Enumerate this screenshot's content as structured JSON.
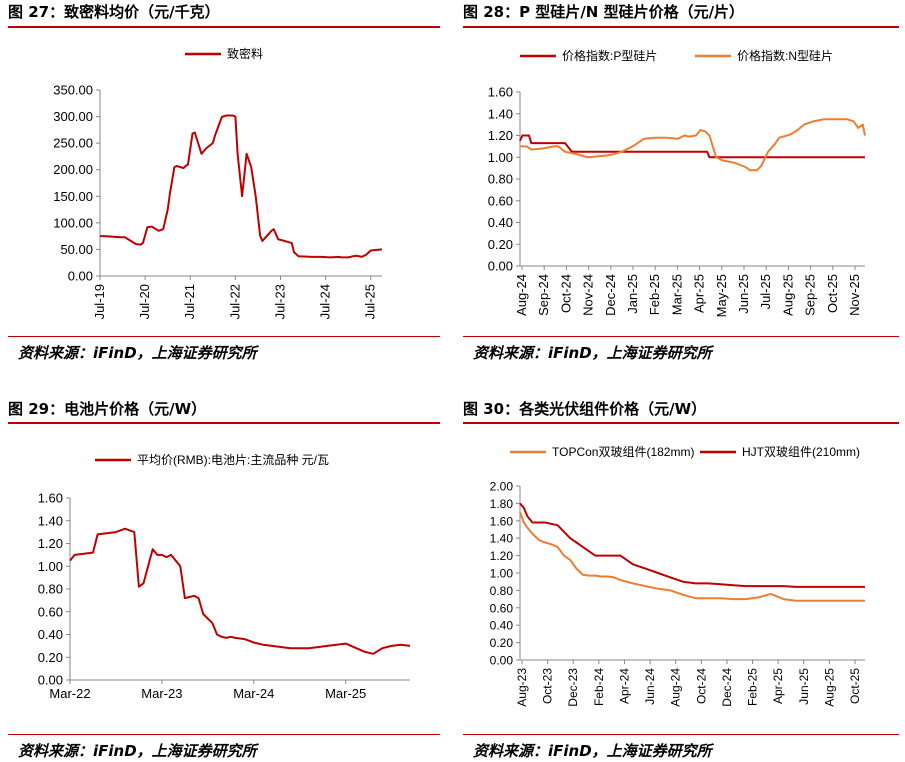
{
  "colors": {
    "dark_red": "#C00000",
    "orange": "#ED7D31",
    "rule": "#C00000"
  },
  "charts": [
    {
      "title": "图 27：致密料均价（元/千克）",
      "source": "资料来源：iFinD，上海证券研究所",
      "chart_data": {
        "type": "line",
        "title": "",
        "legend": [
          "致密料"
        ],
        "ylim": [
          0,
          350
        ],
        "yticks": [
          "0.00",
          "50.00",
          "100.00",
          "150.00",
          "200.00",
          "250.00",
          "300.00",
          "350.00"
        ],
        "xticks": [
          "Jul-19",
          "Jul-20",
          "Jul-21",
          "Jul-22",
          "Jul-23",
          "Jul-24",
          "Jul-25"
        ],
        "xrange": [
          2019.5,
          2025.75
        ],
        "series": [
          {
            "name": "致密料",
            "color": "#C00000",
            "x": [
              2019.5,
              2019.6,
              2019.8,
              2019.95,
              2020.0,
              2020.05,
              2020.3,
              2020.4,
              2020.45,
              2020.55,
              2020.65,
              2020.8,
              2020.9,
              2021.0,
              2021.05,
              2021.15,
              2021.2,
              2021.35,
              2021.4,
              2021.45,
              2021.55,
              2021.6,
              2021.75,
              2021.8,
              2021.85,
              2022.0,
              2022.05,
              2022.2,
              2022.3,
              2022.45,
              2022.5,
              2022.55,
              2022.65,
              2022.75,
              2022.85,
              2022.95,
              2023.05,
              2023.1,
              2023.3,
              2023.35,
              2023.45,
              2023.55,
              2023.75,
              2023.8,
              2023.9,
              2024.2,
              2024.4,
              2024.6,
              2024.8,
              2024.85,
              2025.0,
              2025.1,
              2025.2,
              2025.3,
              2025.4,
              2025.5,
              2025.75
            ],
            "y": [
              75,
              75,
              74,
              73,
              73,
              73,
              60,
              59,
              62,
              92,
              93,
              85,
              88,
              125,
              155,
              205,
              207,
              203,
              207,
              210,
              268,
              270,
              230,
              235,
              240,
              250,
              265,
              299,
              302,
              302,
              300,
              230,
              150,
              230,
              205,
              150,
              75,
              66,
              85,
              88,
              69,
              67,
              62,
              45,
              37,
              36,
              36,
              35,
              36,
              35,
              35,
              37,
              38,
              36,
              40,
              48,
              50
            ]
          }
        ]
      }
    },
    {
      "title": "图 28：P 型硅片/N 型硅片价格（元/片）",
      "source": "资料来源：iFinD，上海证券研究所",
      "chart_data": {
        "type": "line",
        "title": "",
        "legend": [
          "价格指数:P型硅片",
          "价格指数:N型硅片"
        ],
        "ylim": [
          0,
          1.6
        ],
        "yticks": [
          "0.00",
          "0.20",
          "0.40",
          "0.60",
          "0.80",
          "1.00",
          "1.20",
          "1.40",
          "1.60"
        ],
        "xticks": [
          "Aug-24",
          "Sep-24",
          "Oct-24",
          "Nov-24",
          "Dec-24",
          "Jan-25",
          "Feb-25",
          "Mar-25",
          "Apr-25",
          "May-25",
          "Jun-25",
          "Jul-25",
          "Aug-25",
          "Sep-25",
          "Oct-25",
          "Nov-25"
        ],
        "xrange": [
          0,
          15.3
        ],
        "series": [
          {
            "name": "价格指数:P型硅片",
            "color": "#C00000",
            "x": [
              0,
              0.1,
              0.4,
              0.5,
              1.0,
              2.0,
              2.3,
              3.0,
              4.0,
              5.0,
              6.0,
              7.0,
              8.0,
              8.3,
              8.4,
              9.0,
              10.0,
              11.0,
              12.0,
              13.0,
              14.0,
              15.3
            ],
            "y": [
              1.15,
              1.2,
              1.2,
              1.13,
              1.13,
              1.13,
              1.05,
              1.05,
              1.05,
              1.05,
              1.05,
              1.05,
              1.05,
              1.05,
              1.0,
              1.0,
              1.0,
              1.0,
              1.0,
              1.0,
              1.0,
              1.0
            ]
          },
          {
            "name": "价格指数:N型硅片",
            "color": "#ED7D31",
            "x": [
              0,
              0.3,
              0.5,
              1.0,
              1.5,
              1.7,
              2.0,
              2.5,
              3.0,
              3.5,
              4.0,
              4.5,
              5.0,
              5.5,
              6.0,
              6.5,
              7.0,
              7.3,
              7.5,
              7.8,
              8.0,
              8.2,
              8.4,
              8.7,
              9.0,
              9.5,
              10.0,
              10.2,
              10.5,
              10.7,
              11.0,
              11.3,
              11.5,
              12.0,
              12.3,
              12.6,
              13.0,
              13.5,
              14.0,
              14.5,
              14.8,
              15.0,
              15.2,
              15.3
            ],
            "y": [
              1.1,
              1.1,
              1.07,
              1.08,
              1.1,
              1.1,
              1.05,
              1.03,
              1.0,
              1.01,
              1.02,
              1.05,
              1.1,
              1.17,
              1.18,
              1.18,
              1.17,
              1.2,
              1.19,
              1.2,
              1.25,
              1.24,
              1.2,
              1.0,
              0.97,
              0.95,
              0.91,
              0.88,
              0.88,
              0.92,
              1.05,
              1.12,
              1.18,
              1.21,
              1.25,
              1.3,
              1.33,
              1.35,
              1.35,
              1.35,
              1.33,
              1.27,
              1.3,
              1.2
            ]
          }
        ]
      }
    },
    {
      "title": "图 29：电池片价格（元/W）",
      "source": "资料来源：iFinD，上海证券研究所",
      "chart_data": {
        "type": "line",
        "title": "",
        "legend": [
          "平均价(RMB):电池片:主流品种 元/瓦"
        ],
        "ylim": [
          0,
          1.6
        ],
        "yticks": [
          "0.00",
          "0.20",
          "0.40",
          "0.60",
          "0.80",
          "1.00",
          "1.20",
          "1.40",
          "1.60"
        ],
        "xticks": [
          "Mar-22",
          "Mar-23",
          "Mar-24",
          "Mar-25"
        ],
        "xrange": [
          2022.0,
          2025.7
        ],
        "series": [
          {
            "name": "平均价(RMB):电池片:主流品种 元/瓦",
            "color": "#C00000",
            "x": [
              2022.0,
              2022.05,
              2022.25,
              2022.3,
              2022.5,
              2022.6,
              2022.7,
              2022.75,
              2022.8,
              2022.9,
              2022.95,
              2023.0,
              2023.05,
              2023.1,
              2023.2,
              2023.25,
              2023.3,
              2023.35,
              2023.4,
              2023.45,
              2023.55,
              2023.6,
              2023.65,
              2023.7,
              2023.75,
              2023.8,
              2023.9,
              2024.0,
              2024.1,
              2024.2,
              2024.4,
              2024.6,
              2024.8,
              2025.0,
              2025.2,
              2025.3,
              2025.4,
              2025.5,
              2025.6,
              2025.7
            ],
            "y": [
              1.05,
              1.1,
              1.12,
              1.28,
              1.3,
              1.33,
              1.3,
              0.82,
              0.85,
              1.15,
              1.1,
              1.1,
              1.08,
              1.1,
              1.0,
              0.72,
              0.73,
              0.74,
              0.72,
              0.58,
              0.5,
              0.4,
              0.38,
              0.37,
              0.38,
              0.37,
              0.36,
              0.33,
              0.31,
              0.3,
              0.28,
              0.28,
              0.3,
              0.32,
              0.25,
              0.23,
              0.28,
              0.3,
              0.31,
              0.3
            ]
          }
        ]
      }
    },
    {
      "title": "图 30：各类光伏组件价格（元/W）",
      "source": "资料来源：iFinD，上海证券研究所",
      "chart_data": {
        "type": "line",
        "title": "",
        "legend": [
          "TOPCon双玻组件(182mm)",
          "HJT双玻组件(210mm)"
        ],
        "ylim": [
          0,
          2.0
        ],
        "yticks": [
          "0.00",
          "0.20",
          "0.40",
          "0.60",
          "0.80",
          "1.00",
          "1.20",
          "1.40",
          "1.60",
          "1.80",
          "2.00"
        ],
        "xticks": [
          "Aug-23",
          "Oct-23",
          "Dec-23",
          "Feb-24",
          "Apr-24",
          "Jun-24",
          "Aug-24",
          "Oct-24",
          "Dec-24",
          "Feb-25",
          "Apr-25",
          "Jun-25",
          "Aug-25",
          "Oct-25"
        ],
        "xrange": [
          0,
          27.5
        ],
        "series": [
          {
            "name": "TOPCon双玻组件(182mm)",
            "color": "#ED7D31",
            "x": [
              0,
              0.3,
              0.6,
              1.0,
              1.5,
              2.0,
              2.5,
              3.0,
              3.5,
              4.0,
              4.5,
              5.0,
              5.5,
              6.0,
              6.5,
              7.0,
              7.5,
              8.0,
              9.0,
              10.0,
              11.0,
              12.0,
              13.0,
              14.0,
              15.0,
              16.0,
              17.0,
              18.0,
              19.0,
              20.0,
              21.0,
              22.0,
              22.5,
              23.0,
              24.0,
              25.0,
              26.0,
              27.5
            ],
            "y": [
              1.7,
              1.58,
              1.52,
              1.45,
              1.38,
              1.35,
              1.33,
              1.3,
              1.2,
              1.15,
              1.05,
              0.98,
              0.97,
              0.97,
              0.96,
              0.96,
              0.95,
              0.92,
              0.88,
              0.85,
              0.82,
              0.8,
              0.75,
              0.71,
              0.71,
              0.71,
              0.7,
              0.7,
              0.72,
              0.76,
              0.7,
              0.68,
              0.68,
              0.68,
              0.68,
              0.68,
              0.68,
              0.68
            ]
          },
          {
            "name": "HJT双玻组件(210mm)",
            "color": "#C00000",
            "x": [
              0,
              0.3,
              0.6,
              1.0,
              1.5,
              2.0,
              3.0,
              4.0,
              4.5,
              5.0,
              6.0,
              7.0,
              8.0,
              9.0,
              10.0,
              11.0,
              12.0,
              13.0,
              14.0,
              15.0,
              16.0,
              17.0,
              18.0,
              19.0,
              20.0,
              21.0,
              22.0,
              23.0,
              24.0,
              25.0,
              26.0,
              27.5
            ],
            "y": [
              1.8,
              1.75,
              1.65,
              1.58,
              1.58,
              1.58,
              1.55,
              1.4,
              1.35,
              1.3,
              1.2,
              1.2,
              1.2,
              1.1,
              1.05,
              1.0,
              0.95,
              0.9,
              0.88,
              0.88,
              0.87,
              0.86,
              0.85,
              0.85,
              0.85,
              0.85,
              0.84,
              0.84,
              0.84,
              0.84,
              0.84,
              0.84
            ]
          }
        ]
      }
    }
  ]
}
